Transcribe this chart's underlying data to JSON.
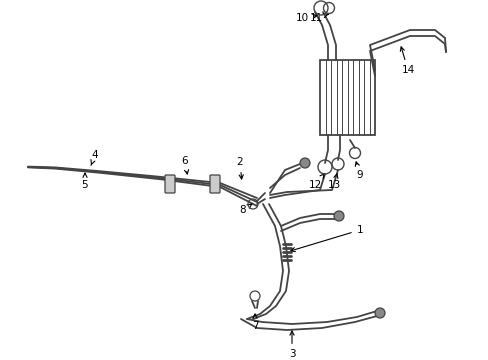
{
  "bg_color": "#ffffff",
  "line_color": "#444444",
  "text_color": "#000000",
  "fig_width": 4.89,
  "fig_height": 3.6,
  "dpi": 100
}
